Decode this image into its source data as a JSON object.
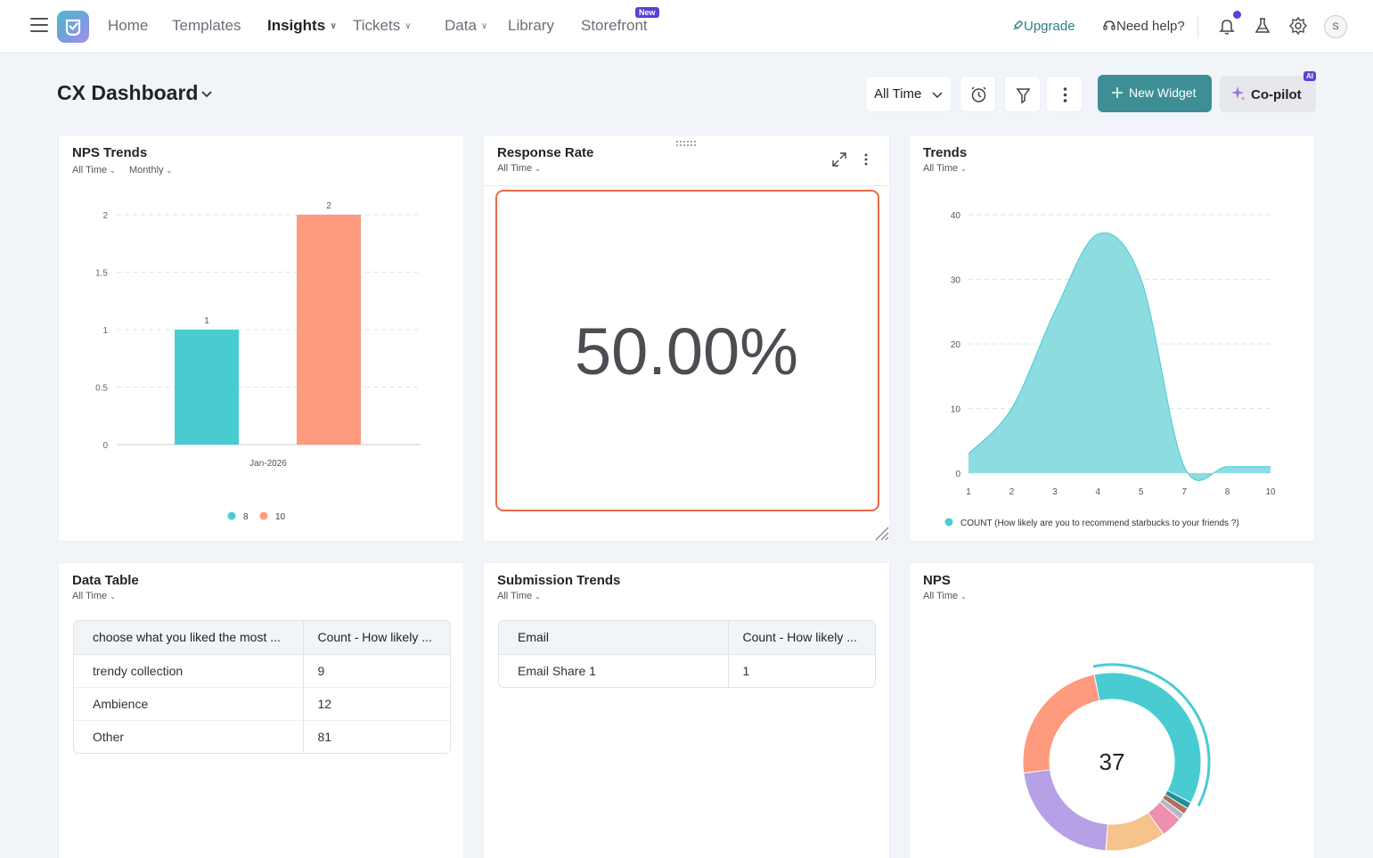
{
  "nav": {
    "items": [
      {
        "label": "Home",
        "active": false,
        "chevron": false
      },
      {
        "label": "Templates",
        "active": false,
        "chevron": false
      },
      {
        "label": "Insights",
        "active": true,
        "chevron": true
      },
      {
        "label": "Tickets",
        "active": false,
        "chevron": true
      },
      {
        "label": "Data",
        "active": false,
        "chevron": true
      },
      {
        "label": "Library",
        "active": false,
        "chevron": false
      },
      {
        "label": "Storefront",
        "active": false,
        "chevron": false
      }
    ],
    "new_badge": "New",
    "upgrade": "Upgrade",
    "need_help": "Need help?",
    "avatar_initial": "S"
  },
  "header": {
    "title": "CX Dashboard",
    "time_filter": "All Time",
    "new_widget": "New Widget",
    "copilot": "Co-pilot",
    "ai_badge": "AI"
  },
  "colors": {
    "teal": "#48ccd2",
    "salmon": "#fe9a7d",
    "area": "#8cdce0",
    "accent": "#3e8f95",
    "highlight": "#e86a44"
  },
  "widgets": {
    "nps_trends": {
      "title": "NPS Trends",
      "filter_time": "All Time",
      "filter_period": "Monthly",
      "chart_data": {
        "type": "bar",
        "categories": [
          "Jan-2026"
        ],
        "series": [
          {
            "name": "8",
            "values": [
              1
            ]
          },
          {
            "name": "10",
            "values": [
              2
            ]
          }
        ],
        "y_ticks": [
          "0",
          "0.5",
          "1",
          "1.5",
          "2"
        ],
        "ylim": [
          0,
          2
        ]
      }
    },
    "response_rate": {
      "title": "Response Rate",
      "filter_time": "All Time",
      "value": "50.00%"
    },
    "trends": {
      "title": "Trends",
      "filter_time": "All Time",
      "chart_data": {
        "type": "area",
        "x_labels": [
          "1",
          "2",
          "3",
          "4",
          "5",
          "7",
          "8",
          "10"
        ],
        "y_ticks": [
          "0",
          "10",
          "20",
          "30",
          "40"
        ],
        "ylim": [
          0,
          40
        ],
        "points": [
          {
            "x": 1,
            "y": 3
          },
          {
            "x": 2,
            "y": 10
          },
          {
            "x": 3,
            "y": 25
          },
          {
            "x": 4,
            "y": 37
          },
          {
            "x": 5,
            "y": 30
          },
          {
            "x": 7,
            "y": 1
          },
          {
            "x": 8,
            "y": 1
          },
          {
            "x": 10,
            "y": 1
          }
        ],
        "legend": "COUNT (How likely are you to recommend starbucks to your friends ?)"
      }
    },
    "data_table": {
      "title": "Data Table",
      "filter_time": "All Time",
      "columns": [
        "choose what you liked the most ...",
        "Count - How likely ..."
      ],
      "rows": [
        [
          "trendy collection",
          "9"
        ],
        [
          "Ambience",
          "12"
        ],
        [
          "Other",
          "81"
        ]
      ]
    },
    "submission_trends": {
      "title": "Submission Trends",
      "filter_time": "All Time",
      "columns": [
        "Email",
        "Count - How likely ..."
      ],
      "rows": [
        [
          "Email Share 1",
          "1"
        ]
      ]
    },
    "nps": {
      "title": "NPS",
      "filter_time": "All Time",
      "center_value": "37",
      "chart_data": {
        "type": "pie",
        "segments": [
          {
            "label": "teal",
            "value": 36,
            "color": "#48ccd2"
          },
          {
            "label": "dark-teal",
            "value": 1.2,
            "color": "#1f8f9a"
          },
          {
            "label": "brown",
            "value": 1.2,
            "color": "#b0705a"
          },
          {
            "label": "gray",
            "value": 1.2,
            "color": "#b5b9c0"
          },
          {
            "label": "pink",
            "value": 4,
            "color": "#ee8eb0"
          },
          {
            "label": "orange",
            "value": 11,
            "color": "#f6c38d"
          },
          {
            "label": "purple",
            "value": 22,
            "color": "#b6a0e6"
          },
          {
            "label": "salmon",
            "value": 24,
            "color": "#fe9a7d"
          }
        ]
      }
    }
  }
}
